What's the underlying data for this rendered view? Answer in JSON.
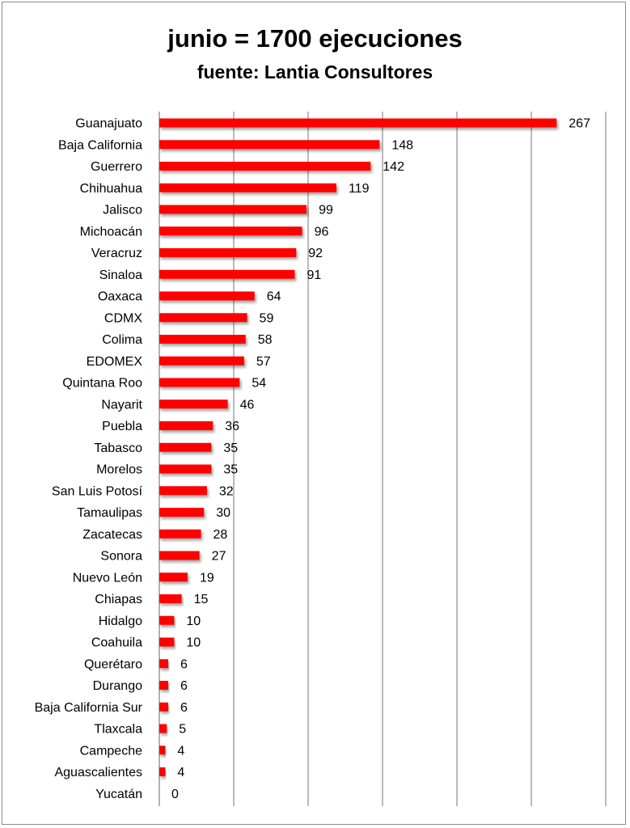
{
  "chart_data": {
    "type": "bar",
    "orientation": "horizontal",
    "title": "junio = 1700 ejecuciones",
    "subtitle": "fuente: Lantia Consultores",
    "categories": [
      "Guanajuato",
      "Baja California",
      "Guerrero",
      "Chihuahua",
      "Jalisco",
      "Michoacán",
      "Veracruz",
      "Sinaloa",
      "Oaxaca",
      "CDMX",
      "Colima",
      "EDOMEX",
      "Quintana Roo",
      "Nayarit",
      "Puebla",
      "Tabasco",
      "Morelos",
      "San Luis Potosí",
      "Tamaulipas",
      "Zacatecas",
      "Sonora",
      "Nuevo León",
      "Chiapas",
      "Hidalgo",
      "Coahuila",
      "Querétaro",
      "Durango",
      "Baja California Sur",
      "Tlaxcala",
      "Campeche",
      "Aguascalientes",
      "Yucatán"
    ],
    "values": [
      267,
      148,
      142,
      119,
      99,
      96,
      92,
      91,
      64,
      59,
      58,
      57,
      54,
      46,
      36,
      35,
      35,
      32,
      30,
      28,
      27,
      19,
      15,
      10,
      10,
      6,
      6,
      6,
      5,
      4,
      4,
      0
    ],
    "xlim": [
      0,
      300
    ],
    "gridlines": "vertical",
    "bar_color": "#ff0000",
    "data_labels": true
  }
}
